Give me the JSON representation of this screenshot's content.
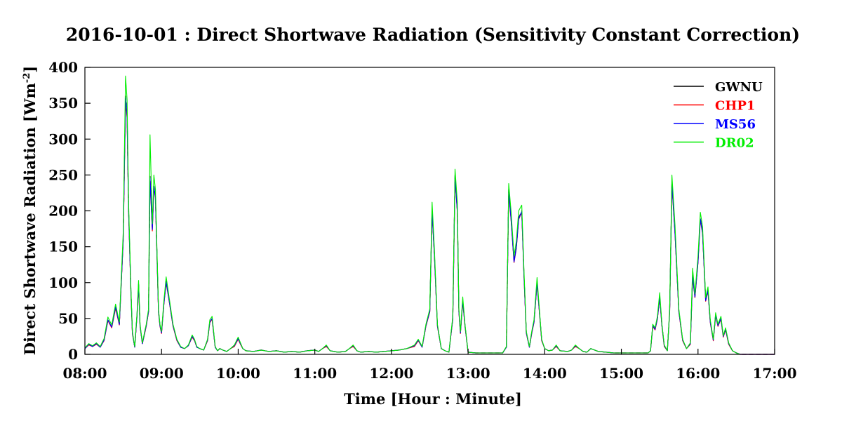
{
  "chart_data": {
    "type": "line",
    "title": "2016-10-01 : Direct Shortwave Radiation (Sensitivity Constant Correction)",
    "xlabel": "Time  [Hour : Minute]",
    "ylabel": "Direct  Shortwave  Radiation  [Wm",
    "ylabel_sup": "-2",
    "ylabel_end": "]",
    "xlim": [
      8,
      17
    ],
    "ylim": [
      0,
      400
    ],
    "x_ticks": [
      8,
      9,
      10,
      11,
      12,
      13,
      14,
      15,
      16,
      17
    ],
    "x_tick_labels": [
      "08:00",
      "09:00",
      "10:00",
      "11:00",
      "12:00",
      "13:00",
      "14:00",
      "15:00",
      "16:00",
      "17:00"
    ],
    "y_ticks": [
      0,
      50,
      100,
      150,
      200,
      250,
      300,
      350,
      400
    ],
    "y_tick_labels": [
      "0",
      "50",
      "100",
      "150",
      "200",
      "250",
      "300",
      "350",
      "400"
    ],
    "grid": false,
    "legend_position": "top-right",
    "x": [
      8.0,
      8.05,
      8.1,
      8.15,
      8.2,
      8.25,
      8.3,
      8.35,
      8.4,
      8.45,
      8.5,
      8.53,
      8.55,
      8.57,
      8.6,
      8.62,
      8.65,
      8.68,
      8.7,
      8.72,
      8.75,
      8.78,
      8.8,
      8.83,
      8.85,
      8.88,
      8.9,
      8.92,
      8.94,
      8.96,
      8.98,
      9.0,
      9.03,
      9.06,
      9.1,
      9.15,
      9.2,
      9.25,
      9.3,
      9.35,
      9.4,
      9.43,
      9.46,
      9.5,
      9.55,
      9.6,
      9.63,
      9.66,
      9.68,
      9.7,
      9.73,
      9.76,
      9.8,
      9.85,
      9.9,
      9.95,
      10.0,
      10.03,
      10.06,
      10.1,
      10.2,
      10.3,
      10.4,
      10.5,
      10.6,
      10.7,
      10.8,
      10.9,
      11.0,
      11.05,
      11.1,
      11.15,
      11.2,
      11.3,
      11.4,
      11.45,
      11.5,
      11.55,
      11.6,
      11.7,
      11.8,
      11.9,
      12.0,
      12.1,
      12.2,
      12.3,
      12.35,
      12.4,
      12.45,
      12.5,
      12.53,
      12.56,
      12.6,
      12.65,
      12.7,
      12.75,
      12.8,
      12.83,
      12.86,
      12.88,
      12.9,
      12.93,
      12.96,
      13.0,
      13.1,
      13.2,
      13.3,
      13.4,
      13.45,
      13.5,
      13.53,
      13.56,
      13.6,
      13.63,
      13.66,
      13.7,
      13.73,
      13.76,
      13.8,
      13.83,
      13.86,
      13.9,
      13.93,
      13.96,
      14.0,
      14.05,
      14.1,
      14.15,
      14.2,
      14.3,
      14.35,
      14.4,
      14.45,
      14.5,
      14.55,
      14.6,
      14.7,
      14.8,
      14.9,
      15.0,
      15.1,
      15.2,
      15.3,
      15.35,
      15.38,
      15.41,
      15.44,
      15.47,
      15.5,
      15.53,
      15.56,
      15.6,
      15.63,
      15.66,
      15.7,
      15.75,
      15.8,
      15.85,
      15.9,
      15.93,
      15.96,
      16.0,
      16.03,
      16.06,
      16.1,
      16.13,
      16.16,
      16.2,
      16.23,
      16.26,
      16.3,
      16.33,
      16.36,
      16.4,
      16.45,
      16.5,
      16.55,
      16.6,
      16.7,
      16.8,
      16.9,
      17.0
    ],
    "series": [
      {
        "name": "GWNU",
        "color": "#000000",
        "values": [
          8,
          14,
          11,
          15,
          10,
          20,
          48,
          38,
          66,
          42,
          160,
          360,
          335,
          200,
          90,
          30,
          10,
          55,
          98,
          40,
          15,
          30,
          40,
          60,
          248,
          175,
          235,
          220,
          140,
          60,
          40,
          30,
          70,
          102,
          75,
          40,
          20,
          10,
          8,
          12,
          25,
          20,
          10,
          8,
          6,
          20,
          45,
          50,
          30,
          10,
          5,
          8,
          6,
          4,
          8,
          12,
          22,
          15,
          8,
          5,
          4,
          6,
          4,
          5,
          3,
          4,
          3,
          5,
          6,
          4,
          8,
          12,
          5,
          3,
          4,
          8,
          12,
          5,
          3,
          4,
          3,
          4,
          5,
          6,
          8,
          12,
          20,
          10,
          40,
          60,
          200,
          140,
          40,
          8,
          5,
          3,
          50,
          250,
          200,
          60,
          30,
          75,
          40,
          3,
          2,
          2,
          2,
          2,
          2,
          10,
          230,
          190,
          130,
          150,
          190,
          200,
          110,
          30,
          10,
          30,
          45,
          100,
          60,
          20,
          8,
          5,
          6,
          12,
          5,
          4,
          6,
          12,
          8,
          4,
          3,
          8,
          4,
          3,
          2,
          2,
          2,
          2,
          2,
          2,
          5,
          40,
          35,
          50,
          80,
          40,
          12,
          5,
          60,
          240,
          170,
          60,
          20,
          8,
          15,
          110,
          80,
          130,
          190,
          170,
          75,
          90,
          45,
          20,
          55,
          40,
          50,
          25,
          35,
          15,
          5,
          2,
          0,
          0,
          0,
          0,
          0,
          0
        ]
      },
      {
        "name": "CHP1",
        "color": "#ff0000",
        "values": [
          8,
          13,
          11,
          14,
          10,
          19,
          47,
          37,
          64,
          41,
          158,
          352,
          330,
          198,
          88,
          29,
          10,
          54,
          96,
          39,
          15,
          29,
          39,
          59,
          245,
          172,
          232,
          218,
          138,
          59,
          39,
          29,
          69,
          100,
          74,
          39,
          19,
          10,
          8,
          12,
          24,
          19,
          10,
          8,
          6,
          19,
          44,
          49,
          29,
          10,
          5,
          8,
          6,
          4,
          8,
          11,
          21,
          14,
          8,
          5,
          4,
          6,
          4,
          5,
          3,
          4,
          3,
          5,
          6,
          4,
          8,
          11,
          5,
          3,
          4,
          8,
          11,
          5,
          3,
          4,
          3,
          4,
          5,
          6,
          8,
          11,
          19,
          10,
          39,
          59,
          198,
          138,
          39,
          8,
          5,
          3,
          49,
          246,
          198,
          59,
          29,
          74,
          39,
          3,
          2,
          2,
          2,
          2,
          2,
          10,
          227,
          188,
          128,
          148,
          188,
          198,
          108,
          29,
          10,
          29,
          44,
          99,
          59,
          19,
          8,
          5,
          6,
          11,
          5,
          4,
          6,
          11,
          8,
          4,
          3,
          8,
          4,
          3,
          2,
          2,
          2,
          2,
          2,
          2,
          5,
          39,
          34,
          49,
          79,
          39,
          11,
          5,
          59,
          237,
          168,
          59,
          19,
          8,
          14,
          108,
          79,
          128,
          188,
          168,
          74,
          88,
          44,
          19,
          54,
          39,
          49,
          24,
          34,
          14,
          5,
          2,
          0,
          0,
          0,
          0,
          0,
          0
        ]
      },
      {
        "name": "MS56",
        "color": "#0000ff",
        "values": [
          8,
          14,
          11,
          15,
          10,
          20,
          48,
          38,
          66,
          42,
          160,
          358,
          333,
          200,
          90,
          30,
          10,
          55,
          98,
          40,
          15,
          30,
          40,
          60,
          246,
          174,
          234,
          219,
          140,
          60,
          40,
          30,
          70,
          101,
          75,
          40,
          20,
          10,
          8,
          12,
          25,
          20,
          10,
          8,
          6,
          20,
          45,
          50,
          30,
          10,
          5,
          8,
          6,
          4,
          8,
          12,
          22,
          15,
          8,
          5,
          4,
          6,
          4,
          5,
          3,
          4,
          3,
          5,
          6,
          4,
          8,
          12,
          5,
          3,
          4,
          8,
          12,
          5,
          3,
          4,
          3,
          4,
          5,
          6,
          8,
          12,
          20,
          10,
          40,
          60,
          199,
          139,
          40,
          8,
          5,
          3,
          50,
          248,
          199,
          60,
          30,
          75,
          40,
          3,
          2,
          2,
          2,
          2,
          2,
          10,
          229,
          189,
          129,
          149,
          189,
          199,
          109,
          30,
          10,
          30,
          45,
          100,
          60,
          20,
          8,
          5,
          6,
          12,
          5,
          4,
          6,
          12,
          8,
          4,
          3,
          8,
          4,
          3,
          2,
          2,
          2,
          2,
          2,
          2,
          5,
          40,
          35,
          50,
          80,
          40,
          12,
          5,
          60,
          239,
          169,
          60,
          20,
          8,
          15,
          109,
          80,
          129,
          189,
          169,
          75,
          89,
          45,
          20,
          55,
          40,
          50,
          25,
          35,
          15,
          5,
          2,
          0,
          0,
          0,
          0,
          0,
          0
        ]
      },
      {
        "name": "DR02",
        "color": "#00ee00",
        "values": [
          9,
          15,
          12,
          16,
          11,
          22,
          52,
          41,
          70,
          45,
          170,
          388,
          355,
          210,
          95,
          32,
          11,
          58,
          103,
          42,
          16,
          32,
          42,
          63,
          306,
          182,
          250,
          230,
          147,
          63,
          42,
          32,
          74,
          108,
          79,
          42,
          21,
          11,
          8,
          13,
          27,
          21,
          11,
          8,
          6,
          21,
          48,
          53,
          32,
          11,
          5,
          8,
          6,
          4,
          8,
          13,
          24,
          16,
          8,
          5,
          4,
          6,
          4,
          5,
          3,
          4,
          3,
          5,
          6,
          4,
          8,
          13,
          5,
          3,
          4,
          8,
          13,
          5,
          3,
          4,
          3,
          4,
          5,
          6,
          8,
          13,
          21,
          11,
          42,
          63,
          212,
          147,
          42,
          8,
          5,
          3,
          53,
          258,
          212,
          63,
          32,
          80,
          42,
          3,
          2,
          2,
          2,
          2,
          2,
          11,
          238,
          200,
          137,
          158,
          200,
          208,
          116,
          32,
          11,
          32,
          48,
          107,
          63,
          21,
          8,
          5,
          6,
          13,
          5,
          4,
          6,
          13,
          8,
          4,
          3,
          8,
          4,
          3,
          2,
          2,
          2,
          2,
          2,
          2,
          5,
          42,
          37,
          53,
          86,
          42,
          13,
          5,
          63,
          250,
          180,
          63,
          21,
          8,
          16,
          120,
          84,
          137,
          198,
          178,
          79,
          94,
          48,
          21,
          58,
          42,
          53,
          26,
          37,
          16,
          5,
          2,
          0,
          0,
          0,
          0,
          0,
          0
        ]
      }
    ]
  }
}
